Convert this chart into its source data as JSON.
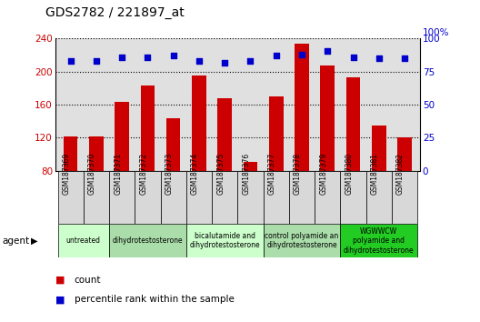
{
  "title": "GDS2782 / 221897_at",
  "samples": [
    "GSM187369",
    "GSM187370",
    "GSM187371",
    "GSM187372",
    "GSM187373",
    "GSM187374",
    "GSM187375",
    "GSM187376",
    "GSM187377",
    "GSM187378",
    "GSM187379",
    "GSM187380",
    "GSM187381",
    "GSM187382"
  ],
  "bar_values": [
    122,
    121,
    163,
    183,
    144,
    195,
    168,
    91,
    170,
    234,
    207,
    193,
    135,
    120
  ],
  "dot_values_pct": [
    83,
    83,
    86,
    86,
    87,
    83,
    82,
    83,
    87,
    88,
    91,
    86,
    85,
    85
  ],
  "ylim_left": [
    80,
    240
  ],
  "ylim_right": [
    0,
    100
  ],
  "yticks_left": [
    80,
    120,
    160,
    200,
    240
  ],
  "yticks_right": [
    0,
    25,
    50,
    75,
    100
  ],
  "bar_color": "#cc0000",
  "dot_color": "#0000cc",
  "plot_bg_color": "#e0e0e0",
  "agents": [
    {
      "label": "untreated",
      "start": 0,
      "end": 2,
      "color": "#ccffcc"
    },
    {
      "label": "dihydrotestosterone",
      "start": 2,
      "end": 5,
      "color": "#aaddaa"
    },
    {
      "label": "bicalutamide and\ndihydrotestosterone",
      "start": 5,
      "end": 8,
      "color": "#ccffcc"
    },
    {
      "label": "control polyamide an\ndihydrotestosterone",
      "start": 8,
      "end": 11,
      "color": "#aaddaa"
    },
    {
      "label": "WGWWCW\npolyamide and\ndihydrotestosterone",
      "start": 11,
      "end": 14,
      "color": "#22cc22"
    }
  ],
  "agent_label": "agent",
  "legend_count_label": "count",
  "legend_dot_label": "percentile rank within the sample",
  "background_color": "#ffffff"
}
